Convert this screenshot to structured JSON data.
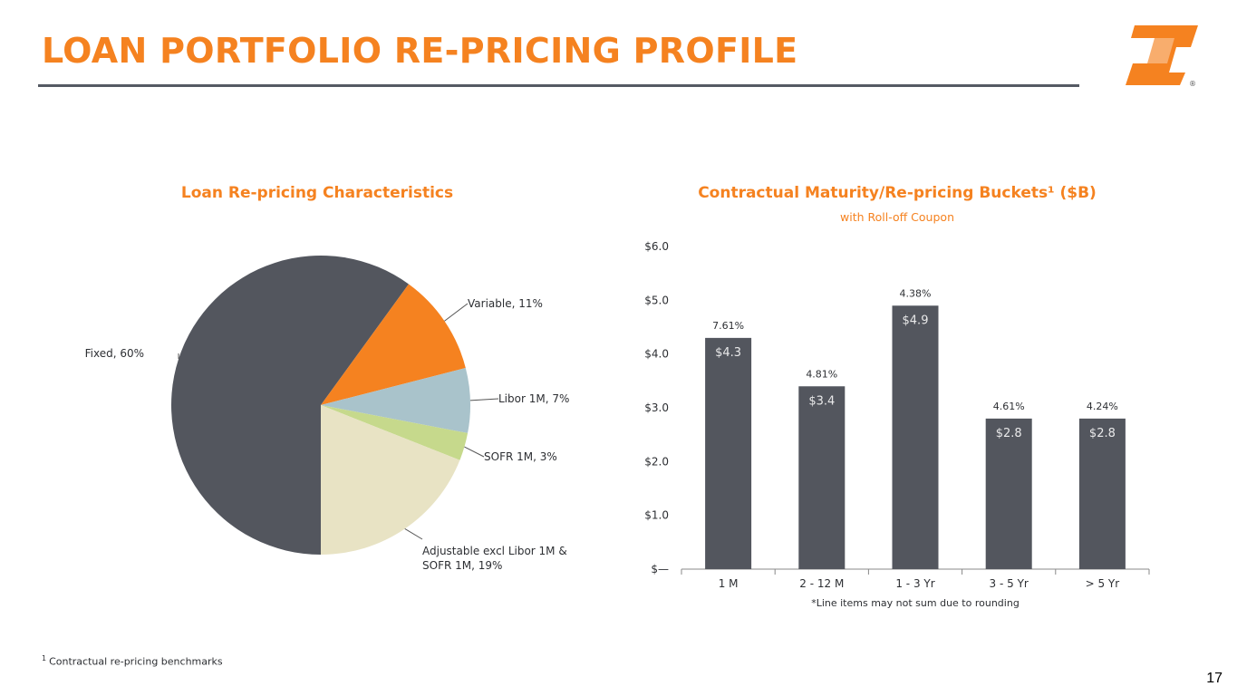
{
  "header": {
    "title": "LOAN PORTFOLIO RE-PRICING PROFILE",
    "logo_icon": "company-logo-icon",
    "registered_mark": "®"
  },
  "colors": {
    "brand_orange": "#f58220",
    "dark_gray": "#53565e",
    "light_blue": "#a9c3cb",
    "light_green": "#c6d98c",
    "cream": "#e8e3c4"
  },
  "pie": {
    "title": "Loan Re-pricing Characteristics"
  },
  "bar": {
    "title": "Contractual Maturity/Re-pricing Buckets¹ ($B)",
    "subtitle": "with Roll-off Coupon",
    "note": "*Line items may not sum due to rounding"
  },
  "footnote": {
    "marker": "1",
    "text": "Contractual re-pricing benchmarks"
  },
  "page_number": "17",
  "chart_data": [
    {
      "type": "pie",
      "title": "Loan Re-pricing Characteristics",
      "slices": [
        {
          "label": "Fixed, 60%",
          "value": 60,
          "color": "#53565e"
        },
        {
          "label": "Variable, 11%",
          "value": 11,
          "color": "#f58220"
        },
        {
          "label": "Libor 1M, 7%",
          "value": 7,
          "color": "#a9c3cb"
        },
        {
          "label": "SOFR 1M, 3%",
          "value": 3,
          "color": "#c6d98c"
        },
        {
          "label": "Adjustable excl Libor 1M & SOFR 1M, 19%",
          "value": 19,
          "color": "#e8e3c4"
        }
      ]
    },
    {
      "type": "bar",
      "title": "Contractual Maturity/Re-pricing Buckets¹ ($B)",
      "subtitle": "with Roll-off Coupon",
      "categories": [
        "1 M",
        "2 - 12 M",
        "1 - 3 Yr",
        "3 - 5 Yr",
        "> 5 Yr"
      ],
      "values": [
        4.3,
        3.4,
        4.9,
        2.8,
        2.8
      ],
      "value_labels": [
        "$4.3",
        "$3.4",
        "$4.9",
        "$2.8",
        "$2.8"
      ],
      "coupon_labels": [
        "7.61%",
        "4.81%",
        "4.38%",
        "4.61%",
        "4.24%"
      ],
      "ylim": [
        0,
        6
      ],
      "yticks": [
        "$—",
        "$1.0",
        "$2.0",
        "$3.0",
        "$4.0",
        "$5.0",
        "$6.0"
      ],
      "grid": false,
      "bar_color": "#53565e",
      "note": "*Line items may not sum due to rounding"
    }
  ]
}
